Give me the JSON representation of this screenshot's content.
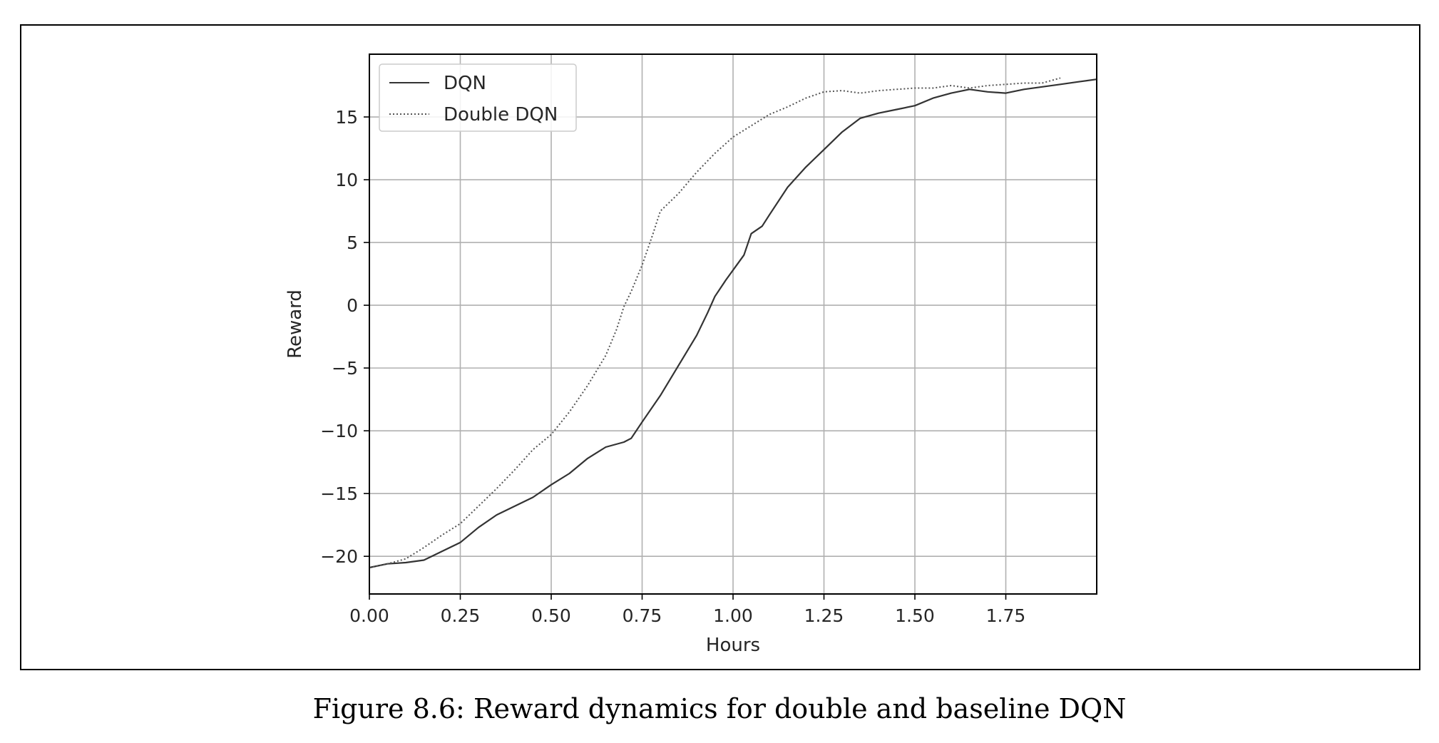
{
  "caption": "Figure 8.6: Reward dynamics for double and baseline DQN",
  "chart_data": {
    "type": "line",
    "xlabel": "Hours",
    "ylabel": "Reward",
    "xlim": [
      0.0,
      2.0
    ],
    "ylim": [
      -23,
      20
    ],
    "x_ticks": [
      0.0,
      0.25,
      0.5,
      0.75,
      1.0,
      1.25,
      1.5,
      1.75
    ],
    "x_tick_labels": [
      "0.00",
      "0.25",
      "0.50",
      "0.75",
      "1.00",
      "1.25",
      "1.50",
      "1.75"
    ],
    "y_ticks": [
      -20,
      -15,
      -10,
      -5,
      0,
      5,
      10,
      15
    ],
    "y_tick_labels": [
      "−20",
      "−15",
      "−10",
      "−5",
      "0",
      "5",
      "10",
      "15"
    ],
    "grid": true,
    "legend_position": "top-left",
    "series": [
      {
        "name": "DQN",
        "style": "solid",
        "color": "#333333",
        "x": [
          0.0,
          0.05,
          0.1,
          0.15,
          0.2,
          0.25,
          0.3,
          0.35,
          0.4,
          0.45,
          0.5,
          0.55,
          0.6,
          0.65,
          0.7,
          0.72,
          0.75,
          0.8,
          0.85,
          0.9,
          0.93,
          0.95,
          0.98,
          1.0,
          1.03,
          1.05,
          1.08,
          1.1,
          1.15,
          1.2,
          1.25,
          1.3,
          1.35,
          1.4,
          1.45,
          1.5,
          1.55,
          1.6,
          1.65,
          1.7,
          1.75,
          1.8,
          1.85,
          1.9,
          1.95,
          2.0
        ],
        "y": [
          -20.9,
          -20.6,
          -20.5,
          -20.3,
          -19.6,
          -18.9,
          -17.7,
          -16.7,
          -16.0,
          -15.3,
          -14.3,
          -13.4,
          -12.2,
          -11.3,
          -10.9,
          -10.6,
          -9.3,
          -7.2,
          -4.8,
          -2.4,
          -0.6,
          0.7,
          2.0,
          2.8,
          4.0,
          5.7,
          6.3,
          7.2,
          9.4,
          11.0,
          12.4,
          13.8,
          14.9,
          15.3,
          15.6,
          15.9,
          16.5,
          16.9,
          17.2,
          17.0,
          16.9,
          17.2,
          17.4,
          17.6,
          17.8,
          18.0
        ]
      },
      {
        "name": "Double DQN",
        "style": "dotted",
        "color": "#555555",
        "x": [
          0.0,
          0.05,
          0.1,
          0.15,
          0.2,
          0.25,
          0.3,
          0.35,
          0.4,
          0.45,
          0.5,
          0.55,
          0.6,
          0.65,
          0.68,
          0.7,
          0.72,
          0.75,
          0.78,
          0.8,
          0.85,
          0.9,
          0.95,
          1.0,
          1.05,
          1.1,
          1.15,
          1.2,
          1.25,
          1.3,
          1.35,
          1.4,
          1.45,
          1.5,
          1.55,
          1.6,
          1.65,
          1.7,
          1.75,
          1.8,
          1.85,
          1.9
        ],
        "y": [
          -20.9,
          -20.6,
          -20.2,
          -19.3,
          -18.3,
          -17.4,
          -16.0,
          -14.6,
          -13.1,
          -11.5,
          -10.3,
          -8.5,
          -6.4,
          -4.0,
          -1.9,
          -0.1,
          1.1,
          3.2,
          5.7,
          7.5,
          8.9,
          10.6,
          12.1,
          13.4,
          14.3,
          15.2,
          15.8,
          16.5,
          17.0,
          17.1,
          16.9,
          17.1,
          17.2,
          17.3,
          17.3,
          17.5,
          17.3,
          17.5,
          17.6,
          17.7,
          17.7,
          18.1
        ]
      }
    ]
  }
}
